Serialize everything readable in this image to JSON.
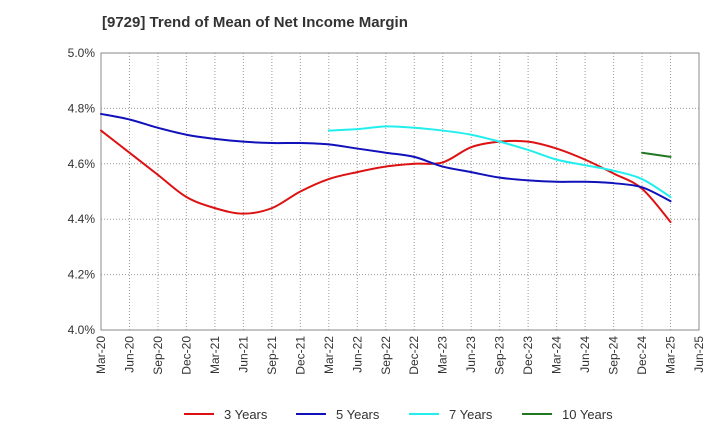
{
  "chart_data": {
    "type": "line",
    "title": "[9729]  Trend of Mean of Net Income Margin",
    "xlabel": "",
    "ylabel": "",
    "x_ticks": [
      "Mar-20",
      "Jun-20",
      "Sep-20",
      "Dec-20",
      "Mar-21",
      "Jun-21",
      "Sep-21",
      "Dec-21",
      "Mar-22",
      "Jun-22",
      "Sep-22",
      "Dec-22",
      "Mar-23",
      "Jun-23",
      "Sep-23",
      "Dec-23",
      "Mar-24",
      "Jun-24",
      "Sep-24",
      "Dec-24",
      "Mar-25",
      "Jun-25"
    ],
    "y_ticks": [
      "4.0%",
      "4.2%",
      "4.4%",
      "4.6%",
      "4.8%",
      "5.0%"
    ],
    "ylim": [
      4.0,
      5.0
    ],
    "grid": true,
    "legend_position": "bottom",
    "series": [
      {
        "name": "3 Years",
        "color": "#dd1111",
        "x": [
          "Mar-20",
          "Jun-20",
          "Sep-20",
          "Dec-20",
          "Mar-21",
          "Jun-21",
          "Sep-21",
          "Dec-21",
          "Mar-22",
          "Jun-22",
          "Sep-22",
          "Dec-22",
          "Mar-23",
          "Jun-23",
          "Sep-23",
          "Dec-23",
          "Mar-24",
          "Jun-24",
          "Sep-24",
          "Dec-24",
          "Mar-25"
        ],
        "values": [
          4.72,
          4.64,
          4.56,
          4.48,
          4.44,
          4.42,
          4.44,
          4.5,
          4.545,
          4.57,
          4.59,
          4.6,
          4.605,
          4.66,
          4.68,
          4.68,
          4.655,
          4.615,
          4.565,
          4.51,
          4.39
        ]
      },
      {
        "name": "5 Years",
        "color": "#1111bb",
        "x": [
          "Mar-20",
          "Jun-20",
          "Sep-20",
          "Dec-20",
          "Mar-21",
          "Jun-21",
          "Sep-21",
          "Dec-21",
          "Mar-22",
          "Jun-22",
          "Sep-22",
          "Dec-22",
          "Mar-23",
          "Jun-23",
          "Sep-23",
          "Dec-23",
          "Mar-24",
          "Jun-24",
          "Sep-24",
          "Dec-24",
          "Mar-25"
        ],
        "values": [
          4.78,
          4.76,
          4.73,
          4.705,
          4.69,
          4.68,
          4.675,
          4.675,
          4.67,
          4.655,
          4.64,
          4.625,
          4.59,
          4.57,
          4.55,
          4.54,
          4.535,
          4.535,
          4.53,
          4.515,
          4.465
        ]
      },
      {
        "name": "7 Years",
        "color": "#22eeee",
        "x": [
          "Mar-22",
          "Jun-22",
          "Sep-22",
          "Dec-22",
          "Mar-23",
          "Jun-23",
          "Sep-23",
          "Dec-23",
          "Mar-24",
          "Jun-24",
          "Sep-24",
          "Dec-24",
          "Mar-25"
        ],
        "values": [
          4.72,
          4.725,
          4.735,
          4.73,
          4.72,
          4.705,
          4.68,
          4.65,
          4.615,
          4.595,
          4.575,
          4.545,
          4.48
        ]
      },
      {
        "name": "10 Years",
        "color": "#227722",
        "x": [
          "Dec-24",
          "Mar-25"
        ],
        "values": [
          4.64,
          4.625
        ]
      }
    ]
  }
}
